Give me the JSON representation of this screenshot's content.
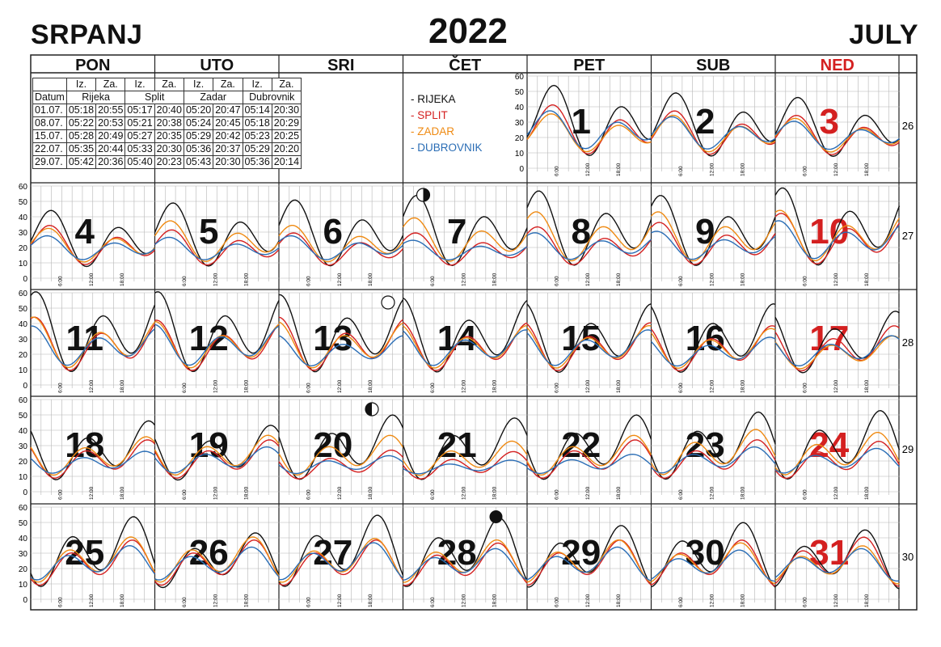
{
  "header": {
    "month_hr": "SRPANJ",
    "year": "2022",
    "month_en": "JULY"
  },
  "weekdays": [
    "PON",
    "UTO",
    "SRI",
    "ČET",
    "PET",
    "SUB",
    "NED"
  ],
  "sun_table": {
    "head_row": [
      "",
      "Iz.",
      "Za.",
      "Iz.",
      "Za.",
      "Iz.",
      "Za.",
      "Iz.",
      "Za."
    ],
    "date_label": "Datum",
    "cities": [
      "Rijeka",
      "Split",
      "Zadar",
      "Dubrovnik"
    ],
    "rows": [
      [
        "01.07.",
        "05:18",
        "20:55",
        "05:17",
        "20:40",
        "05:20",
        "20:47",
        "05:14",
        "20:30"
      ],
      [
        "08.07.",
        "05:22",
        "20:53",
        "05:21",
        "20:38",
        "05:24",
        "20:45",
        "05:18",
        "20:29"
      ],
      [
        "15.07.",
        "05:28",
        "20:49",
        "05:27",
        "20:35",
        "05:29",
        "20:42",
        "05:23",
        "20:25"
      ],
      [
        "22.07.",
        "05:35",
        "20:44",
        "05:33",
        "20:30",
        "05:36",
        "20:37",
        "05:29",
        "20:20"
      ],
      [
        "29.07.",
        "05:42",
        "20:36",
        "05:40",
        "20:23",
        "05:43",
        "20:30",
        "05:36",
        "20:14"
      ]
    ]
  },
  "legend": [
    {
      "label": "- RIJEKA",
      "color": "#111111"
    },
    {
      "label": "- SPLIT",
      "color": "#d42020"
    },
    {
      "label": "- ZADAR",
      "color": "#ef8a12"
    },
    {
      "label": "- DUBROVNIK",
      "color": "#2a6db5"
    }
  ],
  "colors": {
    "rijeka": "#111111",
    "split": "#d42020",
    "zadar": "#ef8a12",
    "dubrovnik": "#2a6db5",
    "sunday": "#d42020",
    "grid": "#b5b5b5",
    "border": "#222222"
  },
  "chart_data": {
    "type": "line",
    "series_names": [
      "RIJEKA",
      "SPLIT",
      "ZADAR",
      "DUBROVNIK"
    ],
    "ylim": [
      0,
      60
    ],
    "y_ticks": [
      "0",
      "10",
      "20",
      "30",
      "40",
      "50",
      "60"
    ],
    "x_ticks": [
      "6:00",
      "12:00",
      "18:00"
    ],
    "weeks": [
      {
        "week": "26",
        "days": [
          "",
          "",
          "",
          "",
          "1",
          "2",
          "3"
        ]
      },
      {
        "week": "27",
        "days": [
          "4",
          "5",
          "6",
          "7",
          "8",
          "9",
          "10"
        ]
      },
      {
        "week": "28",
        "days": [
          "11",
          "12",
          "13",
          "14",
          "15",
          "16",
          "17"
        ]
      },
      {
        "week": "29",
        "days": [
          "18",
          "19",
          "20",
          "21",
          "22",
          "23",
          "24"
        ]
      },
      {
        "week": "30",
        "days": [
          "25",
          "26",
          "27",
          "28",
          "29",
          "30",
          "31"
        ]
      }
    ],
    "daily_peaks": {
      "rijeka": [
        0,
        0,
        0,
        0,
        55,
        50,
        47,
        45,
        50,
        52,
        55,
        58,
        55,
        60,
        62,
        62,
        60,
        58,
        55,
        55,
        50,
        48,
        45,
        52,
        50,
        52,
        54,
        55,
        56,
        45,
        57,
        55,
        50,
        52,
        47
      ],
      "split": [
        0,
        0,
        0,
        0,
        42,
        38,
        35,
        35,
        32,
        30,
        30,
        34,
        37,
        43,
        45,
        43,
        45,
        42,
        42,
        40,
        40,
        35,
        35,
        28,
        27,
        35,
        35,
        34,
        40,
        40,
        40,
        38,
        40,
        40,
        42
      ],
      "zadar": [
        0,
        0,
        0,
        0,
        36,
        35,
        33,
        33,
        38,
        35,
        40,
        44,
        44,
        45,
        45,
        42,
        42,
        40,
        40,
        38,
        33,
        37,
        38,
        38,
        34,
        38,
        42,
        40,
        42,
        42,
        41,
        40,
        40,
        38,
        36
      ],
      "dubrovnik": [
        0,
        0,
        0,
        0,
        38,
        34,
        31,
        28,
        27,
        28,
        25,
        30,
        31,
        38,
        39,
        40,
        33,
        37,
        37,
        32,
        33,
        27,
        30,
        24,
        21,
        25,
        30,
        29,
        36,
        35,
        38,
        34,
        35,
        33,
        34
      ]
    },
    "moon_phases": [
      {
        "day": 7,
        "phase": "first quarter"
      },
      {
        "day": 13,
        "phase": "full moon"
      },
      {
        "day": 20,
        "phase": "last quarter"
      },
      {
        "day": 28,
        "phase": "new moon"
      }
    ]
  }
}
